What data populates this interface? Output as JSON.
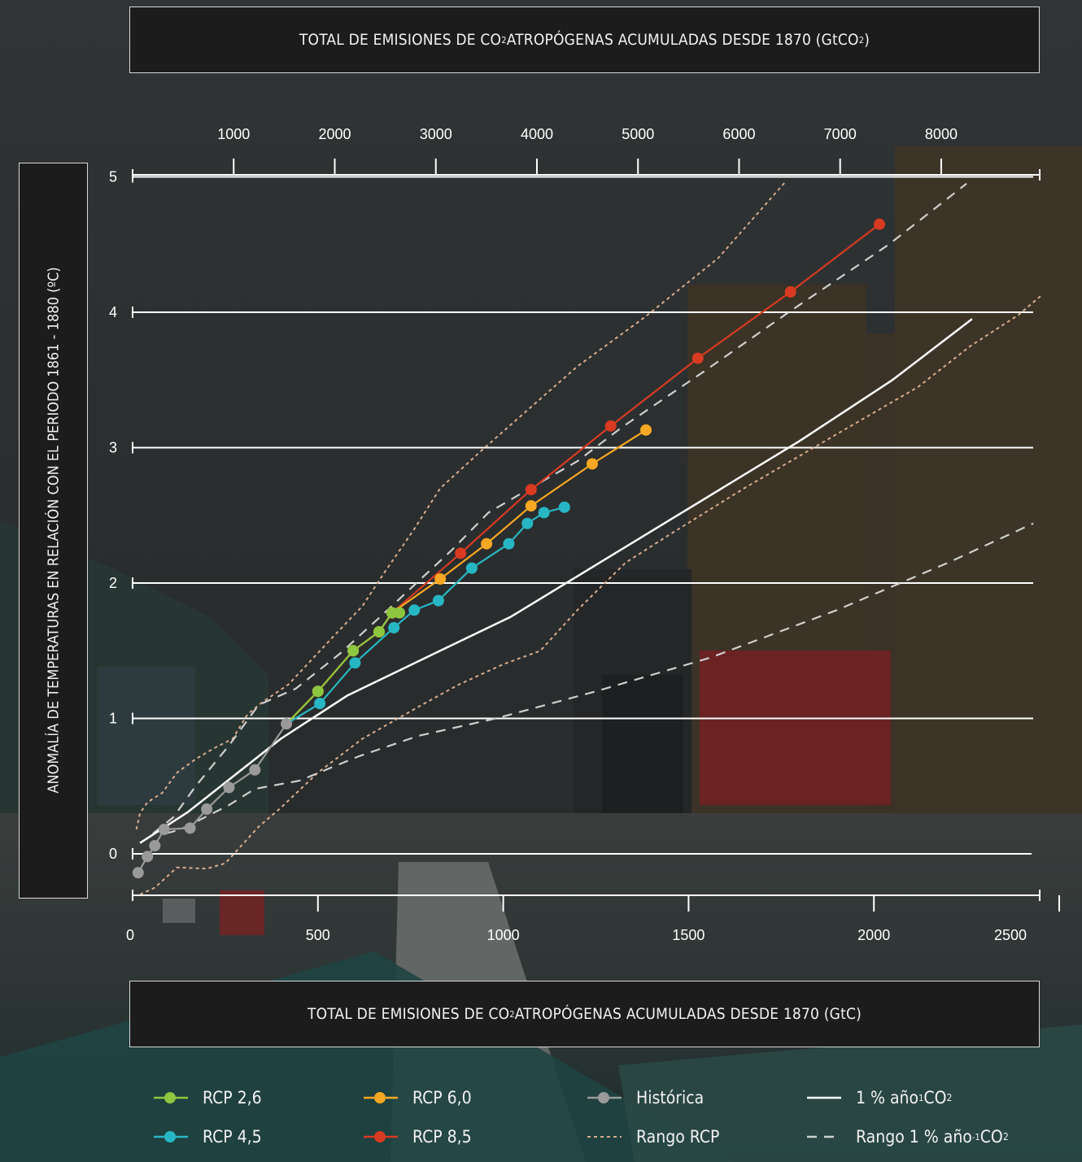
{
  "top_title": {
    "prefix": "TOTAL DE EMISIONES DE CO",
    "sub": "2",
    "middle": " ATROPÓGENAS ACUMULADAS DESDE 1870 (GtCO",
    "sub2": "2",
    "suffix": ")"
  },
  "bottom_title": {
    "prefix": "TOTAL DE EMISIONES DE CO",
    "sub": "2",
    "suffix": " ATROPÓGENAS ACUMULADAS DESDE 1870 (GtC)"
  },
  "y_title": "ANOMALÍA DE TEMPERATURAS EN RELACIÓN CON EL PERIODO 1861 - 1880 (ºC)",
  "colors": {
    "rcp26": "#8dc63f",
    "rcp45": "#27b7c4",
    "rcp60": "#f7a823",
    "rcp85": "#d83a22",
    "historical": "#9a9a9a",
    "pct1": "#ffffff",
    "range_rcp": "#d9ad8e",
    "range_pct1": "#cfcfcf"
  },
  "legend": [
    {
      "key": "rcp26",
      "label": "RCP 2,6",
      "style": "line-dot"
    },
    {
      "key": "rcp60",
      "label": "RCP 6,0",
      "style": "line-dot"
    },
    {
      "key": "historical",
      "label": "Histórica",
      "style": "line-dot"
    },
    {
      "key": "pct1",
      "label": "1 % año",
      "sup": "1",
      "tail": " CO",
      "sub": "2",
      "style": "solid"
    },
    {
      "key": "rcp45",
      "label": "RCP 4,5",
      "style": "line-dot"
    },
    {
      "key": "rcp85",
      "label": "RCP 8,5",
      "style": "line-dot"
    },
    {
      "key": "range_rcp",
      "label": "Rango RCP",
      "style": "dotted"
    },
    {
      "key": "range_pct1",
      "label": "Rango 1 % año",
      "sup": "-1",
      "tail": " CO",
      "sub": "2",
      "style": "dashed"
    }
  ],
  "chart_data": {
    "type": "line",
    "x_bottom": {
      "ticks": [
        0,
        500,
        1000,
        1500,
        2000,
        2500
      ],
      "lim": [
        0,
        2500
      ],
      "unit": "GtC"
    },
    "x_top": {
      "ticks": [
        1000,
        2000,
        3000,
        4000,
        5000,
        6000,
        7000,
        8000
      ],
      "unit": "GtCO2"
    },
    "y": {
      "ticks": [
        0,
        1,
        2,
        3,
        4,
        5
      ],
      "lim": [
        -0.3,
        5
      ]
    },
    "grid": true,
    "legend_position": "bottom",
    "series": [
      {
        "key": "historical",
        "name": "Histórica",
        "markers": true,
        "points": [
          [
            15,
            -0.14
          ],
          [
            40,
            -0.02
          ],
          [
            60,
            0.06
          ],
          [
            85,
            0.18
          ],
          [
            155,
            0.19
          ],
          [
            200,
            0.33
          ],
          [
            260,
            0.49
          ],
          [
            330,
            0.62
          ],
          [
            415,
            0.96
          ]
        ]
      },
      {
        "key": "rcp26",
        "name": "RCP 2,6",
        "markers": true,
        "points": [
          [
            415,
            0.96
          ],
          [
            500,
            1.2
          ],
          [
            595,
            1.5
          ],
          [
            665,
            1.64
          ],
          [
            700,
            1.78
          ],
          [
            720,
            1.78
          ]
        ]
      },
      {
        "key": "rcp45",
        "name": "RCP 4,5",
        "markers": true,
        "points": [
          [
            415,
            0.96
          ],
          [
            505,
            1.11
          ],
          [
            600,
            1.41
          ],
          [
            705,
            1.67
          ],
          [
            760,
            1.8
          ],
          [
            825,
            1.87
          ],
          [
            915,
            2.11
          ],
          [
            1015,
            2.29
          ],
          [
            1065,
            2.44
          ],
          [
            1110,
            2.52
          ],
          [
            1165,
            2.56
          ]
        ]
      },
      {
        "key": "rcp60",
        "name": "RCP 6,0",
        "markers": true,
        "points": [
          [
            415,
            0.96
          ],
          [
            500,
            1.2
          ],
          [
            595,
            1.5
          ],
          [
            665,
            1.64
          ],
          [
            700,
            1.78
          ],
          [
            830,
            2.03
          ],
          [
            955,
            2.29
          ],
          [
            1075,
            2.57
          ],
          [
            1240,
            2.88
          ],
          [
            1385,
            3.13
          ]
        ]
      },
      {
        "key": "rcp85",
        "name": "RCP 8,5",
        "markers": true,
        "points": [
          [
            415,
            0.96
          ],
          [
            500,
            1.2
          ],
          [
            595,
            1.5
          ],
          [
            665,
            1.64
          ],
          [
            700,
            1.78
          ],
          [
            885,
            2.22
          ],
          [
            1075,
            2.69
          ],
          [
            1290,
            3.16
          ],
          [
            1525,
            3.66
          ],
          [
            1775,
            4.15
          ],
          [
            2015,
            4.65
          ]
        ]
      },
      {
        "key": "pct1",
        "name": "1 % año CO2",
        "markers": false,
        "points": [
          [
            20,
            0.08
          ],
          [
            150,
            0.31
          ],
          [
            400,
            0.85
          ],
          [
            580,
            1.17
          ],
          [
            830,
            1.5
          ],
          [
            1020,
            1.75
          ],
          [
            1230,
            2.1
          ],
          [
            1500,
            2.55
          ],
          [
            1800,
            3.05
          ],
          [
            2050,
            3.5
          ],
          [
            2265,
            3.95
          ]
        ]
      }
    ],
    "ranges": [
      {
        "key": "range_rcp",
        "name": "Rango RCP",
        "style": "dotted",
        "upper": [
          [
            10,
            0.18
          ],
          [
            20,
            0.3
          ],
          [
            40,
            0.38
          ],
          [
            80,
            0.45
          ],
          [
            120,
            0.6
          ],
          [
            170,
            0.7
          ],
          [
            220,
            0.78
          ],
          [
            270,
            0.85
          ],
          [
            310,
            1.03
          ],
          [
            350,
            1.12
          ],
          [
            420,
            1.25
          ],
          [
            540,
            1.6
          ],
          [
            620,
            1.83
          ],
          [
            680,
            2.08
          ],
          [
            760,
            2.4
          ],
          [
            830,
            2.7
          ],
          [
            950,
            3.0
          ],
          [
            1050,
            3.24
          ],
          [
            1200,
            3.6
          ],
          [
            1380,
            3.96
          ],
          [
            1580,
            4.4
          ],
          [
            1760,
            4.96
          ]
        ],
        "lower": [
          [
            20,
            -0.3
          ],
          [
            60,
            -0.25
          ],
          [
            120,
            -0.1
          ],
          [
            200,
            -0.11
          ],
          [
            250,
            -0.07
          ],
          [
            340,
            0.2
          ],
          [
            400,
            0.34
          ],
          [
            500,
            0.6
          ],
          [
            620,
            0.85
          ],
          [
            780,
            1.1
          ],
          [
            880,
            1.25
          ],
          [
            1000,
            1.4
          ],
          [
            1100,
            1.5
          ],
          [
            1200,
            1.8
          ],
          [
            1330,
            2.15
          ],
          [
            1450,
            2.36
          ],
          [
            1650,
            2.7
          ],
          [
            1900,
            3.1
          ],
          [
            2120,
            3.45
          ],
          [
            2260,
            3.75
          ],
          [
            2390,
            3.98
          ],
          [
            2450,
            4.12
          ]
        ]
      },
      {
        "key": "range_pct1",
        "name": "Rango 1 % año-1 CO2",
        "style": "dashed",
        "upper": [
          [
            55,
            0.15
          ],
          [
            110,
            0.27
          ],
          [
            170,
            0.5
          ],
          [
            260,
            0.8
          ],
          [
            340,
            1.1
          ],
          [
            440,
            1.22
          ],
          [
            560,
            1.48
          ],
          [
            680,
            1.78
          ],
          [
            750,
            1.96
          ],
          [
            860,
            2.24
          ],
          [
            960,
            2.52
          ],
          [
            1060,
            2.68
          ],
          [
            1200,
            2.9
          ],
          [
            1320,
            3.15
          ],
          [
            1540,
            3.56
          ],
          [
            1770,
            4.0
          ],
          [
            2040,
            4.5
          ],
          [
            2250,
            4.95
          ]
        ],
        "lower": [
          [
            90,
            0.15
          ],
          [
            130,
            0.18
          ],
          [
            260,
            0.36
          ],
          [
            330,
            0.48
          ],
          [
            450,
            0.54
          ],
          [
            610,
            0.72
          ],
          [
            770,
            0.87
          ],
          [
            980,
            1.0
          ],
          [
            1250,
            1.2
          ],
          [
            1560,
            1.45
          ],
          [
            1900,
            1.8
          ],
          [
            2200,
            2.15
          ],
          [
            2430,
            2.44
          ]
        ]
      }
    ]
  }
}
